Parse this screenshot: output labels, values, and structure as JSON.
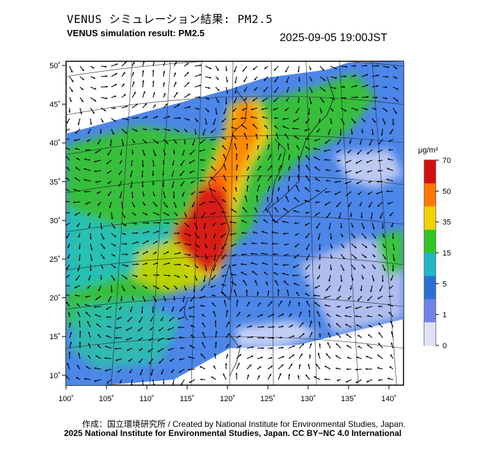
{
  "header": {
    "title_jp": "VENUS シミュレーション結果: PM2.5",
    "title_en": "VENUS simulation result: PM2.5",
    "timestamp": "2025-09-05 19:00JST"
  },
  "map": {
    "lat_labels": [
      "50˚",
      "45˚",
      "40˚",
      "35˚",
      "30˚",
      "25˚",
      "20˚",
      "15˚",
      "10˚"
    ],
    "lon_labels": [
      "100˚",
      "105˚",
      "110˚",
      "115˚",
      "120˚",
      "125˚",
      "130˚",
      "135˚",
      "140˚"
    ],
    "vector_color": "#000000"
  },
  "colorbar": {
    "unit": "μg/m³",
    "ticks": [
      "70",
      "50",
      "35",
      "15",
      "5",
      "1",
      "0"
    ],
    "colors": [
      "#d21010",
      "#ff7800",
      "#f0d200",
      "#2fc71f",
      "#22b6c6",
      "#2b6fd6",
      "#6f83e6",
      "#dfe2f7"
    ]
  },
  "footer": {
    "credit_line": "作成：国立環境研究所 / Created by National Institute for Environmental Studies, Japan.",
    "license_line": "2025 National Institute for Environmental Studies, Japan. CC BY−NC 4.0 International"
  }
}
